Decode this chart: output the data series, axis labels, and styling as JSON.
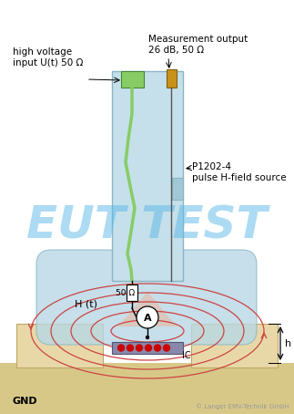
{
  "bg_color": "#ffffff",
  "eut_test_text": "EUT TEST",
  "eut_test_color": "#5bb8e8",
  "eut_test_alpha": 0.5,
  "label_high_voltage": "high voltage\ninput U(t) 50 Ω",
  "label_measurement": "Measurement output\n26 dB, 50 Ω",
  "label_p1202": "P1202-4\npulse H-field source",
  "label_50ohm": "50 Ω",
  "label_ht": "H (t)",
  "label_ic": "IC",
  "label_gnd": "GND",
  "label_h": "h",
  "label_copyright": "© Langer EMV-Technik GmbH",
  "tube_color": "#c5e0ea",
  "tube_edge": "#8ab5c5",
  "probe_body_color": "#b8d8e5",
  "probe_body_edge": "#8ab5c5",
  "pcb_color": "#e8d8a8",
  "pcb_edge": "#c0a860",
  "gnd_color": "#d8c888",
  "ic_color": "#8888aa",
  "ic_edge": "#555577",
  "green_body_color": "#88cc66",
  "green_body_edge": "#448833",
  "green_wire_color": "#88cc66",
  "gold_conn_color": "#c8921a",
  "gold_conn_edge": "#806010",
  "resistor_color": "#ffffff",
  "ammeter_color": "#ffffff",
  "field_color": "#cc4444",
  "field_fill": "#e8a0a0",
  "dot_color": "#cc0000",
  "triangle_fill": "#e8b8a0",
  "wire_color": "#444444",
  "arrow_color": "#000000"
}
